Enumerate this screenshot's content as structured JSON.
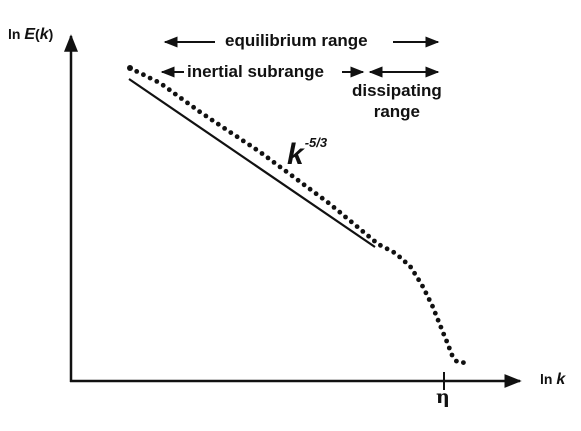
{
  "figure": {
    "y_axis": {
      "prefix": "ln ",
      "symbol": "E",
      "open": "(",
      "var": "k",
      "close": ")"
    },
    "x_axis": {
      "prefix": "ln ",
      "var": "k"
    },
    "eta": "η",
    "ranges": {
      "equilibrium": "equilibrium range",
      "inertial": "inertial subrange",
      "dissipating_line1": "dissipating",
      "dissipating_line2": "range"
    },
    "slope": {
      "base": "k",
      "exponent": "-5/3"
    }
  }
}
